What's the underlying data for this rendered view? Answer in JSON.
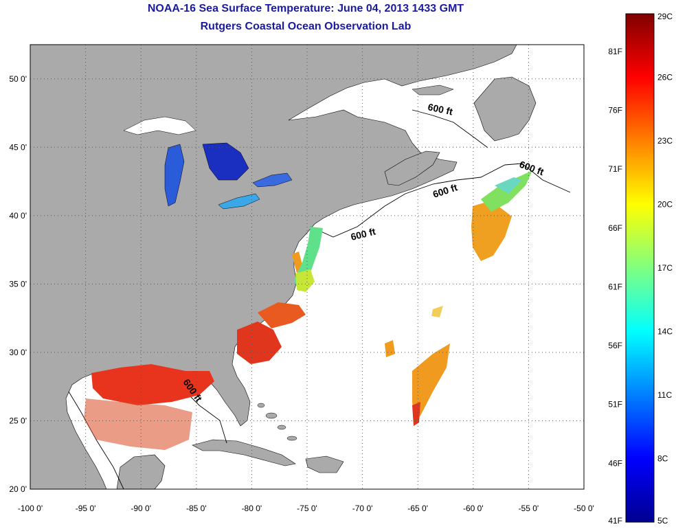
{
  "title": "NOAA-16 Sea Surface Temperature:  June 04, 2013 1433 GMT",
  "subtitle": "Rutgers Coastal Ocean Observation Lab",
  "x_ticks": [
    "-100 0'",
    "-95 0'",
    "-90 0'",
    "-85 0'",
    "-80 0'",
    "-75 0'",
    "-70 0'",
    "-65 0'",
    "-60 0'",
    "-55 0'",
    "-50 0'"
  ],
  "y_ticks": [
    "20 0'",
    "25 0'",
    "30 0'",
    "35 0'",
    "40 0'",
    "45 0'",
    "50 0'"
  ],
  "lon_range": [
    -100,
    -50
  ],
  "lat_range": [
    20,
    52.5
  ],
  "contour_label": "600 ft",
  "colorbar": {
    "celsius_labels": [
      "29C",
      "26C",
      "23C",
      "20C",
      "17C",
      "14C",
      "11C",
      "8C",
      "5C"
    ],
    "fahrenheit_labels": [
      "81F",
      "76F",
      "71F",
      "66F",
      "61F",
      "56F",
      "51F",
      "46F",
      "41F"
    ],
    "celsius_range": [
      5,
      29
    ]
  },
  "colors": {
    "land": "#aaaaaa",
    "water": "#ffffff",
    "title": "#1a1aa0",
    "grid": "#666666"
  }
}
